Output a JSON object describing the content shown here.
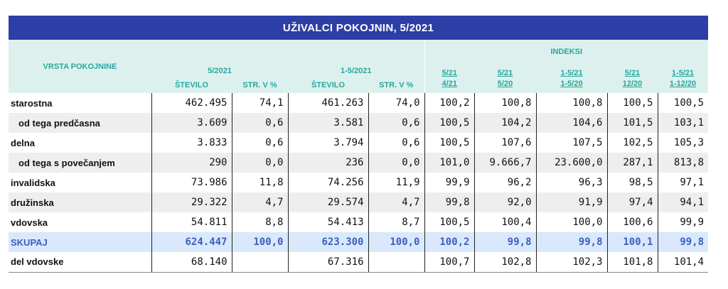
{
  "title": "UŽIVALCI POKOJNIN, 5/2021",
  "header": {
    "row_label": "VRSTA POKOJNINE",
    "group_may": "5/2021",
    "group_jan_may": "1-5/2021",
    "group_indices": "INDEKSI",
    "sub_stevilo": "ŠTEVILO",
    "sub_str": "STR. V %",
    "idx": [
      {
        "top": "5/21",
        "bottom": "4/21"
      },
      {
        "top": "5/21",
        "bottom": "5/20"
      },
      {
        "top": "1-5/21",
        "bottom": "1-5/20"
      },
      {
        "top": "5/21",
        "bottom": "12/20"
      },
      {
        "top": "1-5/21",
        "bottom": "1-12/20"
      }
    ]
  },
  "rows": [
    {
      "label": "starostna",
      "cells": [
        "462.495",
        "74,1",
        "461.263",
        "74,0",
        "100,2",
        "100,8",
        "100,8",
        "100,5",
        "100,5"
      ]
    },
    {
      "label": "od tega predčasna",
      "cells": [
        "3.609",
        "0,6",
        "3.581",
        "0,6",
        "100,5",
        "104,2",
        "104,6",
        "101,5",
        "103,1"
      ]
    },
    {
      "label": "delna",
      "cells": [
        "3.833",
        "0,6",
        "3.794",
        "0,6",
        "100,5",
        "107,6",
        "107,5",
        "102,5",
        "105,3"
      ]
    },
    {
      "label": "od tega s povečanjem",
      "cells": [
        "290",
        "0,0",
        "236",
        "0,0",
        "101,0",
        "9.666,7",
        "23.600,0",
        "287,1",
        "813,8"
      ]
    },
    {
      "label": "invalidska",
      "cells": [
        "73.986",
        "11,8",
        "74.256",
        "11,9",
        "99,9",
        "96,2",
        "96,3",
        "98,5",
        "97,1"
      ]
    },
    {
      "label": "družinska",
      "cells": [
        "29.322",
        "4,7",
        "29.574",
        "4,7",
        "99,8",
        "92,0",
        "91,9",
        "97,4",
        "94,1"
      ]
    },
    {
      "label": "vdovska",
      "cells": [
        "54.811",
        "8,8",
        "54.413",
        "8,7",
        "100,5",
        "100,4",
        "100,0",
        "100,6",
        "99,9"
      ]
    },
    {
      "label": "SKUPAJ",
      "cells": [
        "624.447",
        "100,0",
        "623.300",
        "100,0",
        "100,2",
        "99,8",
        "99,8",
        "100,1",
        "99,8"
      ]
    },
    {
      "label": "del vdovske",
      "cells": [
        "68.140",
        "",
        "67.316",
        "",
        "100,7",
        "102,8",
        "102,3",
        "101,8",
        "101,4"
      ]
    }
  ]
}
